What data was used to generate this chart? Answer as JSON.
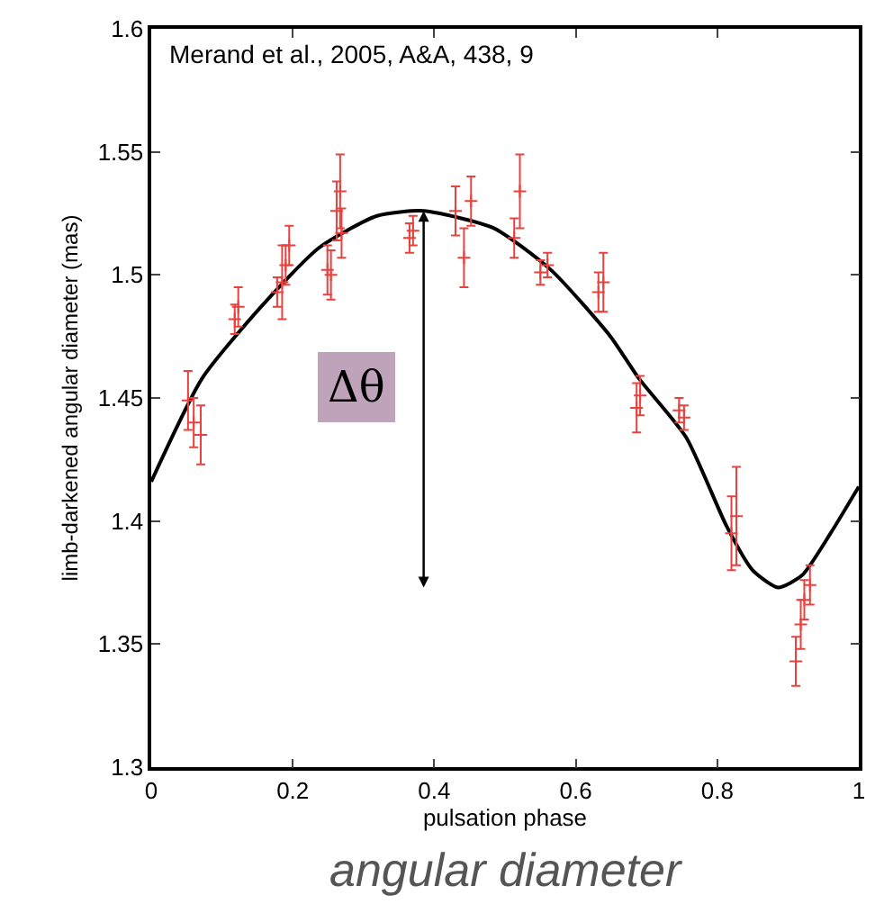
{
  "chart_data": {
    "type": "scatter",
    "xlabel": "pulsation phase",
    "ylabel": "limb-darkened angular diameter (mas)",
    "xlim": [
      0,
      1
    ],
    "xticks": [
      0,
      0.2,
      0.4,
      0.6,
      0.8,
      1
    ],
    "ylim": [
      1.3,
      1.6
    ],
    "yticks": [
      1.3,
      1.35,
      1.4,
      1.45,
      1.5,
      1.55,
      1.6
    ],
    "grid": false,
    "annotations": [
      "Merand et al., 2005, A&A, 438, 9",
      "Δθ",
      "angular diameter"
    ],
    "series": [
      {
        "type": "scatter",
        "color": "#e8423f",
        "marker": "cross",
        "x": [
          0.052,
          0.06,
          0.07,
          0.118,
          0.123,
          0.178,
          0.185,
          0.19,
          0.195,
          0.249,
          0.254,
          0.262,
          0.267,
          0.269,
          0.365,
          0.37,
          0.43,
          0.442,
          0.452,
          0.513,
          0.521,
          0.55,
          0.56,
          0.632,
          0.639,
          0.686,
          0.691,
          0.746,
          0.753,
          0.82,
          0.827,
          0.911,
          0.918,
          0.923,
          0.931
        ],
        "values": [
          1.449,
          1.44,
          1.435,
          1.482,
          1.487,
          1.493,
          1.497,
          1.504,
          1.512,
          1.502,
          1.5,
          1.526,
          1.534,
          1.517,
          1.515,
          1.518,
          1.526,
          1.507,
          1.53,
          1.515,
          1.534,
          1.501,
          1.504,
          1.493,
          1.497,
          1.446,
          1.451,
          1.445,
          1.442,
          1.395,
          1.402,
          1.343,
          1.358,
          1.368,
          1.374
        ],
        "errors": [
          0.012,
          0.01,
          0.012,
          0.006,
          0.008,
          0.006,
          0.015,
          0.008,
          0.008,
          0.01,
          0.01,
          0.012,
          0.015,
          0.01,
          0.006,
          0.006,
          0.01,
          0.012,
          0.01,
          0.008,
          0.015,
          0.005,
          0.005,
          0.008,
          0.012,
          0.01,
          0.008,
          0.005,
          0.005,
          0.015,
          0.02,
          0.01,
          0.01,
          0.008,
          0.008
        ]
      },
      {
        "type": "line",
        "color": "#000000",
        "line_style": "solid",
        "marker": "none",
        "x": [
          0,
          0.072,
          0.155,
          0.237,
          0.319,
          0.385,
          0.484,
          0.565,
          0.649,
          0.689,
          0.756,
          0.813,
          0.85,
          0.886,
          0.92,
          0.96,
          1.0
        ],
        "values": [
          1.416,
          1.458,
          1.487,
          1.511,
          1.524,
          1.526,
          1.519,
          1.502,
          1.475,
          1.458,
          1.434,
          1.398,
          1.38,
          1.373,
          1.378,
          1.395,
          1.414
        ]
      }
    ]
  }
}
